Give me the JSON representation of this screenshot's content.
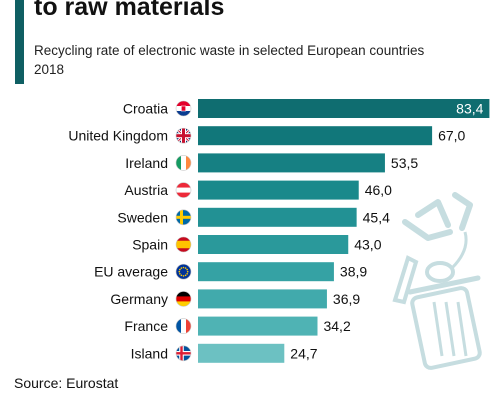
{
  "title": "to raw materials",
  "subtitle": "Recycling rate of electronic waste in selected European countries 2018",
  "source": "Source: Eurostat",
  "colors": {
    "accent": "#0f5f63",
    "bars": [
      "#0f6d70",
      "#11777a",
      "#168083",
      "#1a898b",
      "#229194",
      "#2a999b",
      "#35a2a4",
      "#41aaac",
      "#4fb3b4",
      "#6cc1c2"
    ],
    "recycle_decoration": "#c6dde0"
  },
  "chart_data": {
    "type": "bar",
    "orientation": "horizontal",
    "categories": [
      "Croatia",
      "United Kingdom",
      "Ireland",
      "Austria",
      "Sweden",
      "Spain",
      "EU average",
      "Germany",
      "France",
      "Island"
    ],
    "values": [
      83.4,
      67.0,
      53.5,
      46.0,
      45.4,
      43.0,
      38.9,
      36.9,
      34.2,
      24.7
    ],
    "value_labels": [
      "83,4",
      "67,0",
      "53,5",
      "46,0",
      "45,4",
      "43,0",
      "38,9",
      "36,9",
      "34,2",
      "24,7"
    ],
    "flags": [
      "croatia-flag",
      "uk-flag",
      "ireland-flag",
      "austria-flag",
      "sweden-flag",
      "spain-flag",
      "eu-flag",
      "germany-flag",
      "france-flag",
      "iceland-flag"
    ],
    "title": "",
    "xlabel": "",
    "ylabel": "",
    "xlim": [
      0,
      85
    ]
  }
}
